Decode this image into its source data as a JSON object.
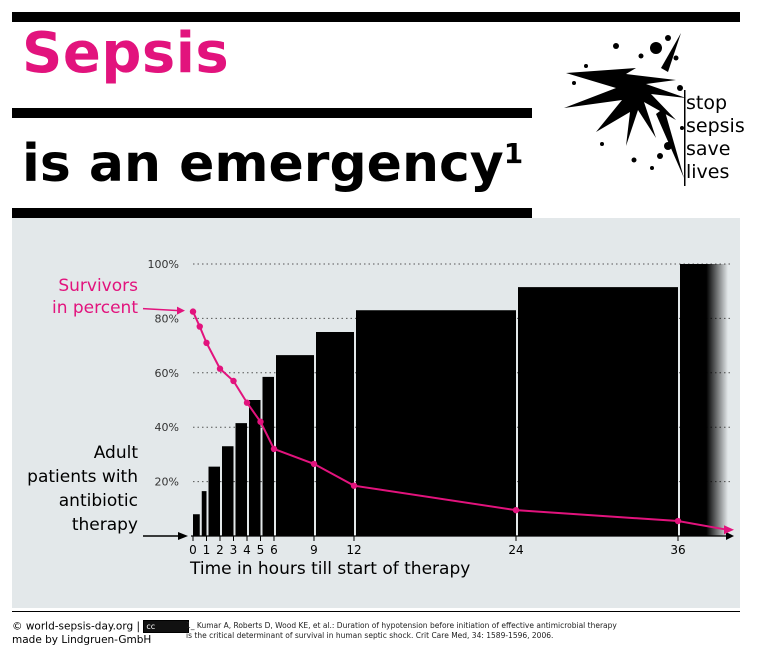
{
  "header": {
    "title_line1": "Sepsis",
    "title_line2": "is an emergency",
    "title_sup": "1"
  },
  "logo": {
    "lines": [
      "stop",
      "sepsis",
      "save",
      "lives"
    ],
    "icon": "splatter-icon"
  },
  "colors": {
    "accent": "#e2137d",
    "panel": "#e3e8ea",
    "bars": "#000000"
  },
  "chart_data": {
    "type": "bar",
    "xlabel": "Time in hours till start of therapy",
    "ylabel_line": [
      "Survivors",
      "in percent"
    ],
    "ylabel_bars": [
      "Adult",
      "patients with",
      "antibiotic",
      "therapy"
    ],
    "ylim": [
      0,
      100
    ],
    "yticks": [
      "20%",
      "40%",
      "60%",
      "80%",
      "100%"
    ],
    "ytick_values": [
      20,
      40,
      60,
      80,
      100
    ],
    "grid": "dotted horizontal",
    "xticks": [
      "0",
      "1",
      "2",
      "3",
      "4",
      "5",
      "6",
      "9",
      "12",
      "24",
      "36"
    ],
    "xtick_values": [
      0,
      1,
      2,
      3,
      4,
      5,
      6,
      9,
      12,
      24,
      36
    ],
    "bars": [
      {
        "start": 0,
        "end": 0.5,
        "value": 8
      },
      {
        "start": 0.5,
        "end": 1,
        "value": 16.5
      },
      {
        "start": 1,
        "end": 2,
        "value": 25.5
      },
      {
        "start": 2,
        "end": 3,
        "value": 33
      },
      {
        "start": 3,
        "end": 4,
        "value": 41.5
      },
      {
        "start": 4,
        "end": 5,
        "value": 50
      },
      {
        "start": 5,
        "end": 6,
        "value": 58.5
      },
      {
        "start": 6,
        "end": 9,
        "value": 66.5
      },
      {
        "start": 9,
        "end": 12,
        "value": 75
      },
      {
        "start": 12,
        "end": 24,
        "value": 83
      },
      {
        "start": 24,
        "end": 36,
        "value": 91.5
      },
      {
        "start": 36,
        "end": 40,
        "value": 100
      }
    ],
    "series": [
      {
        "values": [
          {
            "x": 0,
            "y": 82.5
          },
          {
            "x": 0.5,
            "y": 77
          },
          {
            "x": 1,
            "y": 71
          },
          {
            "x": 2,
            "y": 61.5
          },
          {
            "x": 3,
            "y": 57
          },
          {
            "x": 4,
            "y": 49
          },
          {
            "x": 5,
            "y": 42
          },
          {
            "x": 6,
            "y": 32
          },
          {
            "x": 9,
            "y": 26.5
          },
          {
            "x": 12,
            "y": 18.5
          },
          {
            "x": 24,
            "y": 9.5
          },
          {
            "x": 36,
            "y": 5.5
          }
        ]
      }
    ]
  },
  "footer": {
    "copyright": "© world-sepsis-day.org |",
    "license_badge": "cc",
    "credit": "made by Lindgruen-GmbH",
    "reference_line1": "1_ Kumar A, Roberts D, Wood KE, et al.: Duration of hypotension before initiation of effective antimicrobial therapy",
    "reference_line2": "is the critical determinant of survival in human septic shock. Crit Care Med, 34: 1589-1596, 2006."
  }
}
